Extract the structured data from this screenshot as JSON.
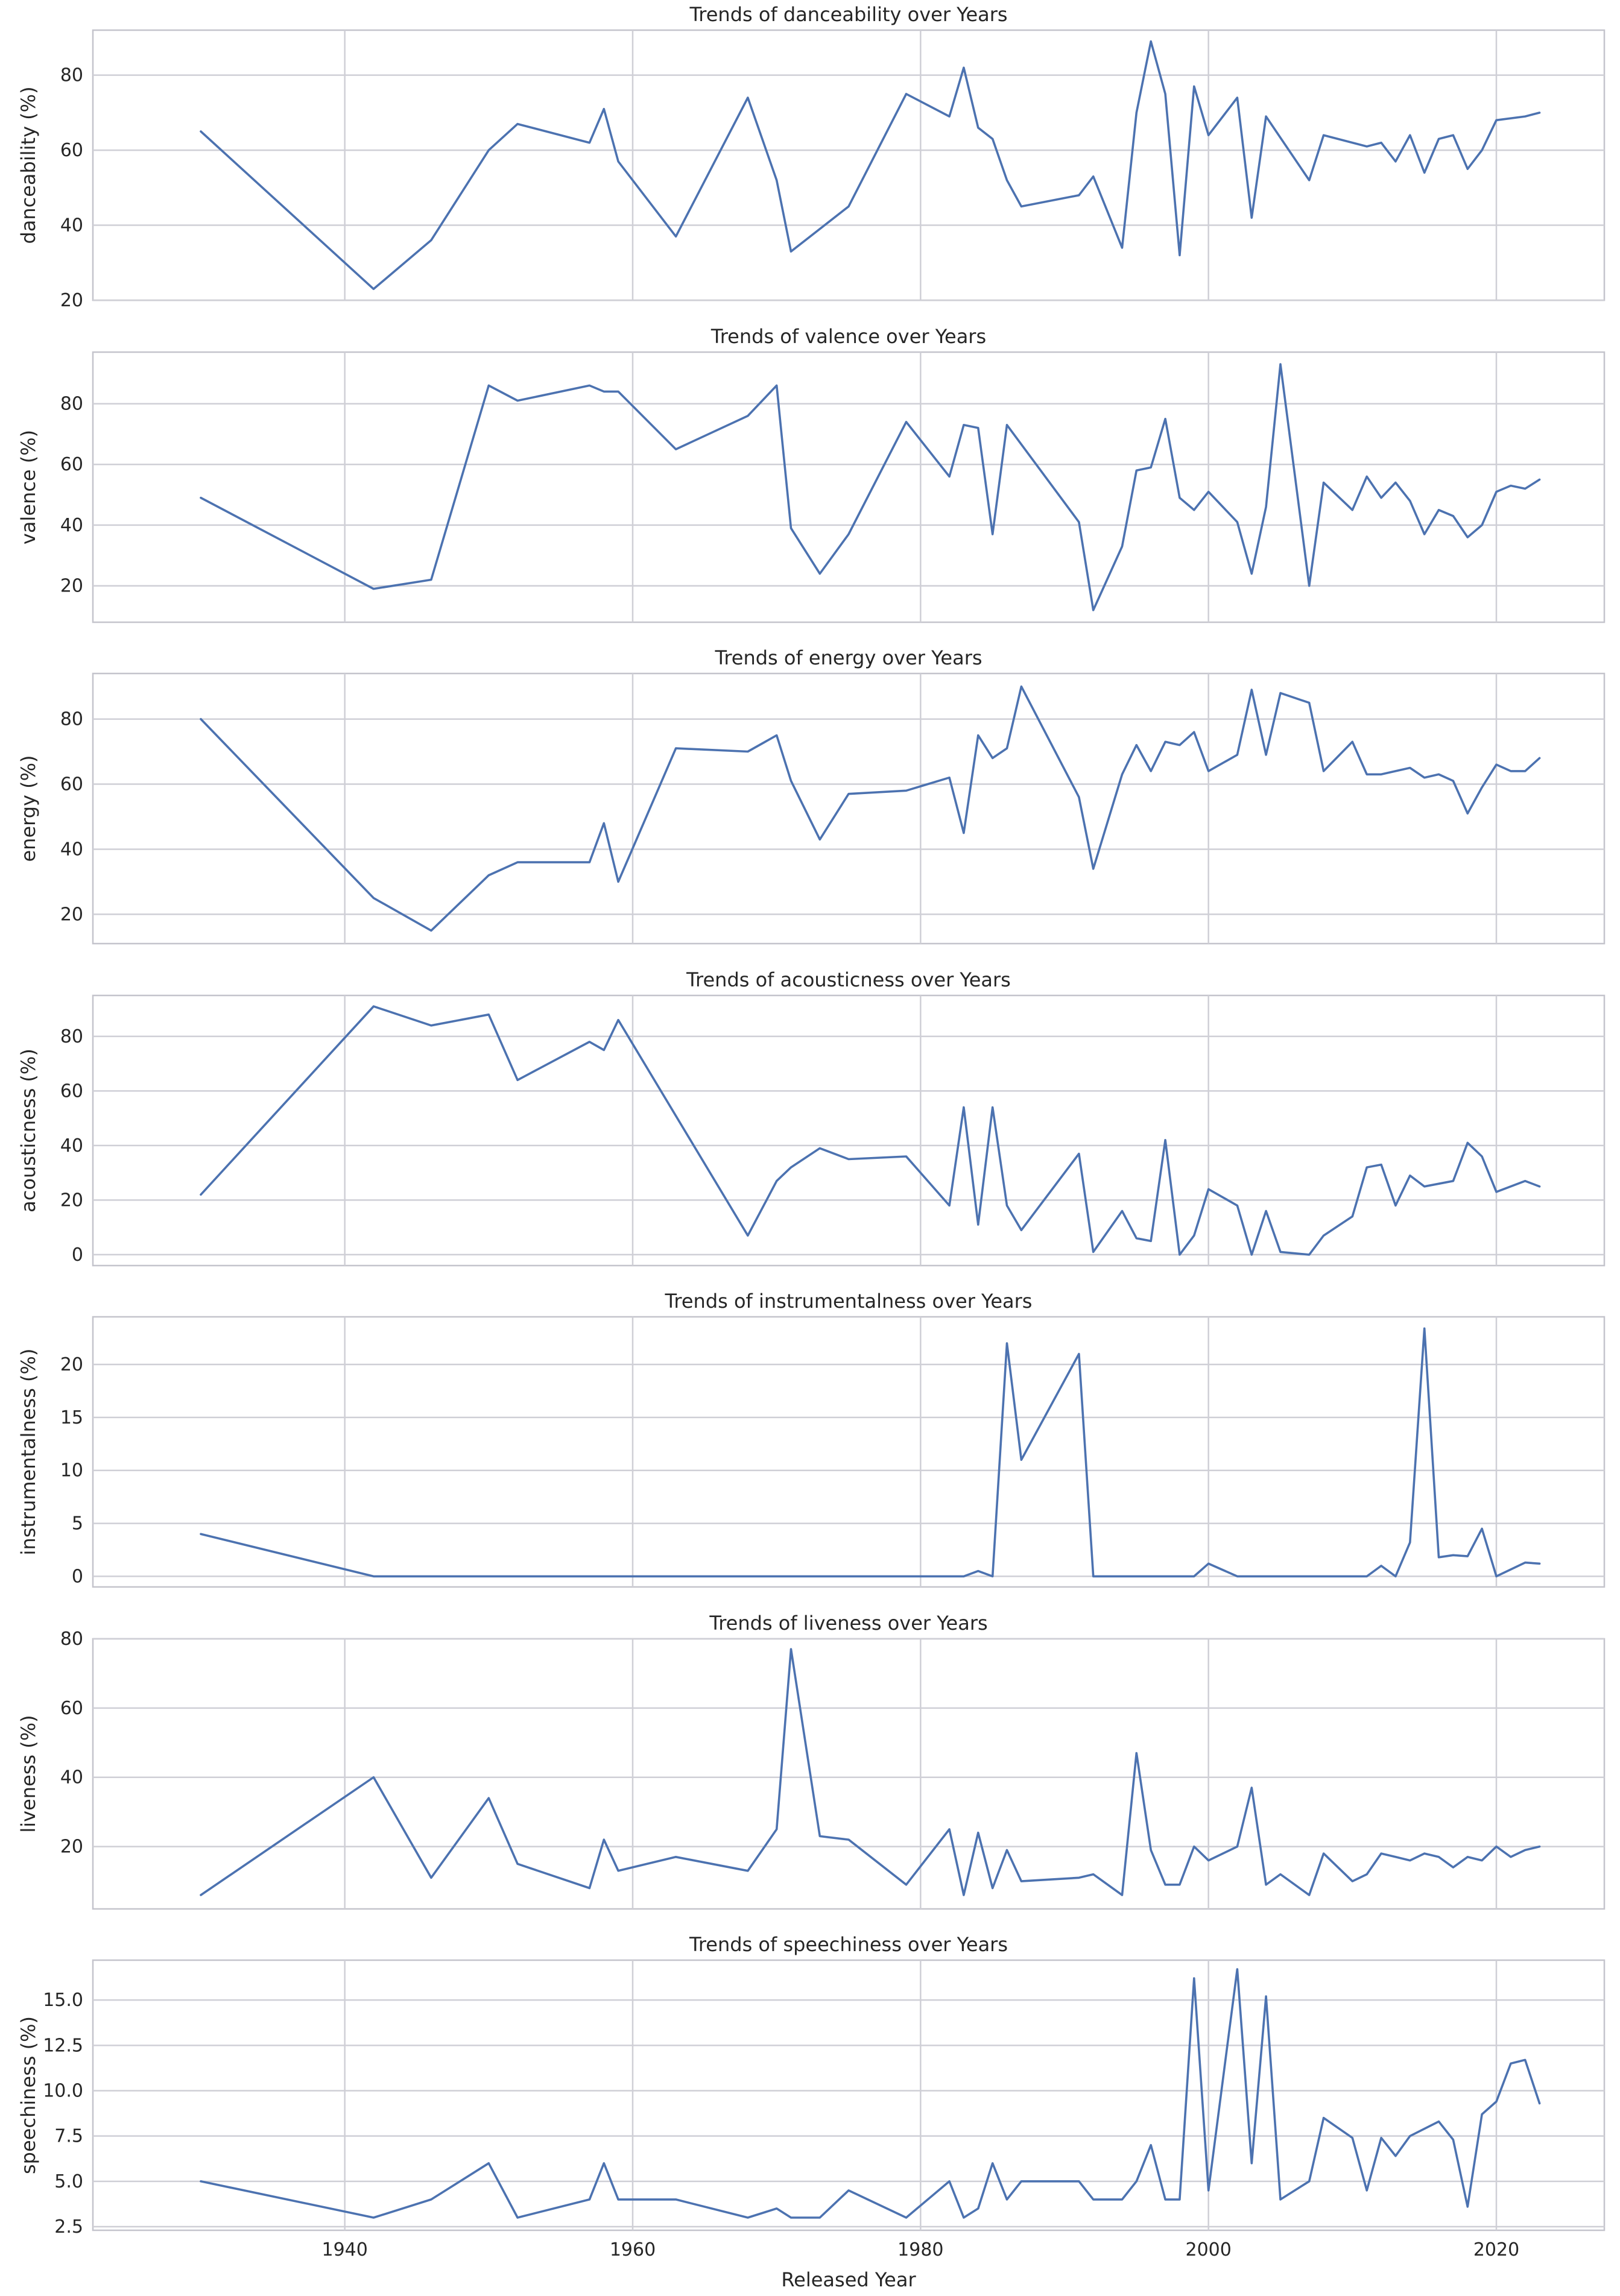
{
  "colors": {
    "line": "#4c72b0",
    "grid": "#cfcfd6",
    "frame": "#c4c4cc"
  },
  "figure": {
    "shared_xlabel": "Released Year"
  },
  "chart_data": [
    {
      "type": "line",
      "title": "Trends of danceability over Years",
      "ylabel": "danceability (%)",
      "xlim": [
        1922.5,
        2027.5
      ],
      "ylim": [
        20,
        92
      ],
      "xticks": [
        1940,
        1960,
        1980,
        2000,
        2020
      ],
      "xtick_labels": [
        "1940",
        "1960",
        "1980",
        "2000",
        "2020"
      ],
      "yticks": [
        20,
        40,
        60,
        80
      ],
      "ytick_labels": [
        "20",
        "40",
        "60",
        "80"
      ],
      "x": [
        1930,
        1942,
        1946,
        1950,
        1952,
        1957,
        1958,
        1959,
        1963,
        1968,
        1970,
        1971,
        1975,
        1979,
        1982,
        1983,
        1984,
        1985,
        1986,
        1987,
        1991,
        1992,
        1994,
        1995,
        1996,
        1997,
        1998,
        1999,
        2000,
        2002,
        2003,
        2004,
        2007,
        2008,
        2011,
        2012,
        2013,
        2014,
        2015,
        2016,
        2017,
        2018,
        2019,
        2020,
        2022,
        2023
      ],
      "series": [
        {
          "values": [
            65,
            23,
            36,
            60,
            67,
            62,
            71,
            57,
            37,
            74,
            52,
            33,
            45,
            75,
            69,
            82,
            66,
            63,
            52,
            45,
            48,
            53,
            34,
            70,
            89,
            75,
            32,
            77,
            64,
            74,
            42,
            69,
            52,
            64,
            61,
            62,
            57,
            64,
            54,
            63,
            64,
            55,
            60,
            68,
            69,
            70
          ]
        }
      ]
    },
    {
      "type": "line",
      "title": "Trends of valence over Years",
      "ylabel": "valence (%)",
      "xlim": [
        1922.5,
        2027.5
      ],
      "ylim": [
        8,
        97
      ],
      "xticks": [
        1940,
        1960,
        1980,
        2000,
        2020
      ],
      "xtick_labels": [
        "1940",
        "1960",
        "1980",
        "2000",
        "2020"
      ],
      "yticks": [
        20,
        40,
        60,
        80
      ],
      "ytick_labels": [
        "20",
        "40",
        "60",
        "80"
      ],
      "x": [
        1930,
        1942,
        1946,
        1950,
        1952,
        1957,
        1958,
        1959,
        1963,
        1968,
        1970,
        1971,
        1973,
        1975,
        1979,
        1982,
        1983,
        1984,
        1985,
        1986,
        1991,
        1992,
        1994,
        1995,
        1996,
        1997,
        1998,
        1999,
        2000,
        2002,
        2003,
        2004,
        2005,
        2007,
        2008,
        2010,
        2011,
        2012,
        2013,
        2014,
        2015,
        2016,
        2017,
        2018,
        2019,
        2020,
        2021,
        2022,
        2023
      ],
      "series": [
        {
          "values": [
            49,
            19,
            22,
            86,
            81,
            86,
            84,
            84,
            65,
            76,
            86,
            39,
            24,
            37,
            74,
            56,
            73,
            72,
            37,
            73,
            41,
            12,
            33,
            58,
            59,
            75,
            49,
            45,
            51,
            41,
            24,
            46,
            93,
            20,
            54,
            45,
            56,
            49,
            54,
            48,
            37,
            45,
            43,
            36,
            40,
            51,
            53,
            52,
            55
          ]
        }
      ]
    },
    {
      "type": "line",
      "title": "Trends of energy over Years",
      "ylabel": "energy (%)",
      "xlim": [
        1922.5,
        2027.5
      ],
      "ylim": [
        11,
        94
      ],
      "xticks": [
        1940,
        1960,
        1980,
        2000,
        2020
      ],
      "xtick_labels": [
        "1940",
        "1960",
        "1980",
        "2000",
        "2020"
      ],
      "yticks": [
        20,
        40,
        60,
        80
      ],
      "ytick_labels": [
        "20",
        "40",
        "60",
        "80"
      ],
      "x": [
        1930,
        1942,
        1946,
        1950,
        1952,
        1957,
        1958,
        1959,
        1963,
        1968,
        1970,
        1971,
        1973,
        1975,
        1979,
        1982,
        1983,
        1984,
        1985,
        1986,
        1987,
        1991,
        1992,
        1994,
        1995,
        1996,
        1997,
        1998,
        1999,
        2000,
        2002,
        2003,
        2004,
        2005,
        2007,
        2008,
        2010,
        2011,
        2012,
        2014,
        2015,
        2016,
        2017,
        2018,
        2019,
        2020,
        2021,
        2022,
        2023
      ],
      "series": [
        {
          "values": [
            80,
            25,
            15,
            32,
            36,
            36,
            48,
            30,
            71,
            70,
            75,
            61,
            43,
            57,
            58,
            62,
            45,
            75,
            68,
            71,
            90,
            56,
            34,
            63,
            72,
            64,
            73,
            72,
            76,
            64,
            69,
            89,
            69,
            88,
            85,
            64,
            73,
            63,
            63,
            65,
            62,
            63,
            61,
            51,
            59,
            66,
            64,
            64,
            68
          ]
        }
      ]
    },
    {
      "type": "line",
      "title": "Trends of acousticness over Years",
      "ylabel": "acousticness (%)",
      "xlim": [
        1922.5,
        2027.5
      ],
      "ylim": [
        -4,
        95
      ],
      "xticks": [
        1940,
        1960,
        1980,
        2000,
        2020
      ],
      "xtick_labels": [
        "1940",
        "1960",
        "1980",
        "2000",
        "2020"
      ],
      "yticks": [
        0,
        20,
        40,
        60,
        80
      ],
      "ytick_labels": [
        "0",
        "20",
        "40",
        "60",
        "80"
      ],
      "x": [
        1930,
        1942,
        1946,
        1950,
        1952,
        1957,
        1958,
        1959,
        1968,
        1970,
        1971,
        1973,
        1975,
        1979,
        1982,
        1983,
        1984,
        1985,
        1986,
        1987,
        1991,
        1992,
        1994,
        1995,
        1996,
        1997,
        1998,
        1999,
        2000,
        2002,
        2003,
        2004,
        2005,
        2007,
        2008,
        2010,
        2011,
        2012,
        2013,
        2014,
        2015,
        2017,
        2018,
        2019,
        2020,
        2022,
        2023
      ],
      "series": [
        {
          "values": [
            22,
            91,
            84,
            88,
            64,
            78,
            75,
            86,
            7,
            27,
            32,
            39,
            35,
            36,
            18,
            54,
            11,
            54,
            18,
            9,
            37,
            1,
            16,
            6,
            5,
            42,
            0,
            7,
            24,
            18,
            0,
            16,
            1,
            0,
            7,
            14,
            32,
            33,
            18,
            29,
            25,
            27,
            41,
            36,
            23,
            27,
            25
          ]
        }
      ]
    },
    {
      "type": "line",
      "title": "Trends of instrumentalness over Years",
      "ylabel": "instrumentalness (%)",
      "xlim": [
        1922.5,
        2027.5
      ],
      "ylim": [
        -1.0,
        24.5
      ],
      "xticks": [
        1940,
        1960,
        1980,
        2000,
        2020
      ],
      "xtick_labels": [
        "1940",
        "1960",
        "1980",
        "2000",
        "2020"
      ],
      "yticks": [
        0,
        5,
        10,
        15,
        20
      ],
      "ytick_labels": [
        "0",
        "5",
        "10",
        "15",
        "20"
      ],
      "x": [
        1930,
        1942,
        1982,
        1983,
        1984,
        1985,
        1986,
        1987,
        1991,
        1992,
        1999,
        2000,
        2002,
        2011,
        2012,
        2013,
        2014,
        2015,
        2016,
        2017,
        2018,
        2019,
        2020,
        2022,
        2023
      ],
      "series": [
        {
          "values": [
            4,
            0,
            0,
            0,
            0.5,
            0,
            22,
            11,
            21,
            0,
            0,
            1.2,
            0,
            0,
            1,
            0,
            3.2,
            23.4,
            1.8,
            2,
            1.9,
            4.5,
            0,
            1.3,
            1.2
          ]
        }
      ]
    },
    {
      "type": "line",
      "title": "Trends of liveness over Years",
      "ylabel": "liveness (%)",
      "xlim": [
        1922.5,
        2027.5
      ],
      "ylim": [
        2,
        80
      ],
      "xticks": [
        1940,
        1960,
        1980,
        2000,
        2020
      ],
      "xtick_labels": [
        "1940",
        "1960",
        "1980",
        "2000",
        "2020"
      ],
      "yticks": [
        20,
        40,
        60,
        80
      ],
      "ytick_labels": [
        "20",
        "40",
        "60",
        "80"
      ],
      "x": [
        1930,
        1942,
        1946,
        1950,
        1952,
        1957,
        1958,
        1959,
        1963,
        1968,
        1970,
        1971,
        1973,
        1975,
        1979,
        1982,
        1983,
        1984,
        1985,
        1986,
        1987,
        1991,
        1992,
        1994,
        1995,
        1996,
        1997,
        1998,
        1999,
        2000,
        2002,
        2003,
        2004,
        2005,
        2007,
        2008,
        2010,
        2011,
        2012,
        2013,
        2014,
        2015,
        2016,
        2017,
        2018,
        2019,
        2020,
        2021,
        2022,
        2023
      ],
      "series": [
        {
          "values": [
            6,
            40,
            11,
            34,
            15,
            8,
            22,
            13,
            17,
            13,
            25,
            77,
            23,
            22,
            9,
            25,
            6,
            24,
            8,
            19,
            10,
            11,
            12,
            6,
            47,
            19,
            9,
            9,
            20,
            16,
            20,
            37,
            9,
            12,
            6,
            18,
            10,
            12,
            18,
            17,
            16,
            18,
            17,
            14,
            17,
            16,
            20,
            17,
            19,
            20
          ]
        }
      ]
    },
    {
      "type": "line",
      "title": "Trends of speechiness over Years",
      "ylabel": "speechiness (%)",
      "xlim": [
        1922.5,
        2027.5
      ],
      "ylim": [
        2.3,
        17.2
      ],
      "xticks": [
        1940,
        1960,
        1980,
        2000,
        2020
      ],
      "xtick_labels": [
        "1940",
        "1960",
        "1980",
        "2000",
        "2020"
      ],
      "yticks": [
        2.5,
        5.0,
        7.5,
        10.0,
        12.5,
        15.0
      ],
      "ytick_labels": [
        "2.5",
        "5.0",
        "7.5",
        "10.0",
        "12.5",
        "15.0"
      ],
      "x": [
        1930,
        1942,
        1946,
        1950,
        1952,
        1957,
        1958,
        1959,
        1963,
        1968,
        1970,
        1971,
        1973,
        1975,
        1979,
        1982,
        1983,
        1984,
        1985,
        1986,
        1987,
        1991,
        1992,
        1994,
        1995,
        1996,
        1997,
        1998,
        1999,
        2000,
        2002,
        2003,
        2004,
        2005,
        2007,
        2008,
        2010,
        2011,
        2012,
        2013,
        2014,
        2016,
        2017,
        2018,
        2019,
        2020,
        2021,
        2022,
        2023
      ],
      "series": [
        {
          "values": [
            5,
            3,
            4,
            6,
            3,
            4,
            6,
            4,
            4,
            3,
            3.5,
            3,
            3,
            4.5,
            3,
            5,
            3,
            3.5,
            6,
            4,
            5,
            5,
            4,
            4,
            5,
            7,
            4,
            4,
            16.2,
            4.5,
            16.7,
            6,
            15.2,
            4,
            5,
            8.5,
            7.4,
            4.5,
            7.4,
            6.4,
            7.5,
            8.3,
            7.3,
            3.6,
            8.7,
            9.4,
            11.5,
            11.7,
            9.3
          ]
        }
      ]
    }
  ]
}
